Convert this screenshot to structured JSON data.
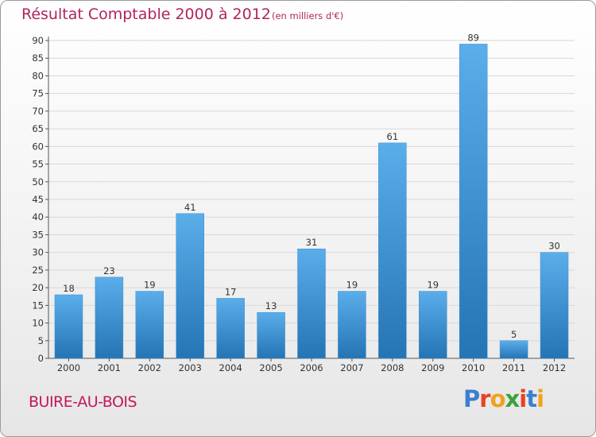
{
  "header": {
    "title": "Résultat Comptable 2000 à 2012",
    "subtitle": "(en milliers d'€)"
  },
  "footer": {
    "commune": "BUIRE-AU-BOIS",
    "logo_text": "Proxiti"
  },
  "colors": {
    "title": "#b1245f",
    "bar_light": "#5aaeea",
    "bar_dark": "#2574b4",
    "grid": "#d8d8d8"
  },
  "chart_data": {
    "type": "bar",
    "title": "Résultat Comptable 2000 à 2012",
    "unit": "en milliers d'€",
    "categories": [
      "2000",
      "2001",
      "2002",
      "2003",
      "2004",
      "2005",
      "2006",
      "2007",
      "2008",
      "2009",
      "2010",
      "2011",
      "2012"
    ],
    "values": [
      18,
      23,
      19,
      41,
      17,
      13,
      31,
      19,
      61,
      19,
      89,
      5,
      30
    ],
    "y_ticks": [
      0,
      5,
      10,
      15,
      20,
      25,
      30,
      35,
      40,
      45,
      50,
      55,
      60,
      65,
      70,
      75,
      80,
      85,
      90
    ],
    "ylim": [
      0,
      90
    ],
    "grid": true,
    "xlabel": "",
    "ylabel": ""
  }
}
